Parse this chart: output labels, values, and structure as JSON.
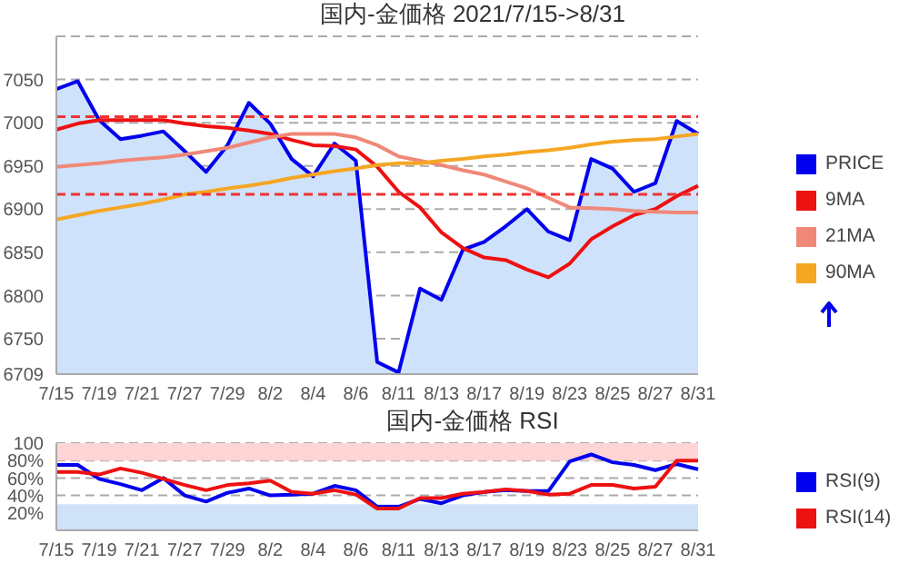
{
  "chart_data": [
    {
      "type": "line",
      "title": "国内-金価格 2021/7/15->8/31",
      "categories": [
        "7/15",
        null,
        "7/19",
        null,
        "7/21",
        null,
        "7/27",
        null,
        "7/29",
        null,
        "8/2",
        null,
        "8/4",
        null,
        "8/6",
        null,
        "8/11",
        null,
        "8/13",
        null,
        "8/17",
        null,
        "8/19",
        null,
        "8/23",
        null,
        "8/25",
        null,
        "8/27",
        null,
        "8/31"
      ],
      "series": [
        {
          "name": "PRICE",
          "type": "area",
          "color": "#0000ee",
          "values": [
            7039,
            7048,
            7003,
            6981,
            6985,
            6990,
            6967,
            6943,
            6974,
            7023,
            6999,
            6958,
            6938,
            6976,
            6956,
            6723,
            6711,
            6808,
            6795,
            6853,
            6862,
            6880,
            6900,
            6874,
            6864,
            6958,
            6947,
            6920,
            6930,
            7002,
            6987
          ]
        },
        {
          "name": "9MA",
          "color": "#ee1111",
          "values": [
            6992,
            6999,
            7003,
            7003,
            7003,
            7003,
            6999,
            6996,
            6994,
            6991,
            6987,
            6980,
            6974,
            6973,
            6969,
            6949,
            6920,
            6902,
            6873,
            6855,
            6844,
            6841,
            6830,
            6821,
            6837,
            6865,
            6880,
            6893,
            6900,
            6915,
            6927
          ]
        },
        {
          "name": "21MA",
          "color": "#f08878",
          "values": [
            6949,
            6951,
            6953,
            6956,
            6958,
            6960,
            6963,
            6967,
            6971,
            6977,
            6983,
            6987,
            6987,
            6987,
            6983,
            6974,
            6961,
            6956,
            6951,
            6945,
            6940,
            6932,
            6924,
            6913,
            6902,
            6901,
            6900,
            6898,
            6897,
            6896,
            6896
          ]
        },
        {
          "name": "90MA",
          "color": "#f5a623",
          "values": [
            6888,
            6893,
            6898,
            6902,
            6906,
            6911,
            6917,
            6920,
            6924,
            6927,
            6931,
            6936,
            6940,
            6944,
            6947,
            6951,
            6953,
            6953,
            6956,
            6958,
            6961,
            6963,
            6966,
            6968,
            6971,
            6975,
            6978,
            6980,
            6981,
            6984,
            6987
          ]
        }
      ],
      "ylim": [
        6709,
        7100
      ],
      "yticks": [
        6709,
        6750,
        6800,
        6850,
        6900,
        6950,
        7000,
        7050
      ],
      "ref_lines": [
        {
          "axis": "y",
          "value": 7007,
          "color": "#ee3333",
          "line_style": "dashed"
        },
        {
          "axis": "y",
          "value": 6917,
          "color": "#ee3333",
          "line_style": "dashed"
        }
      ],
      "grid": "y",
      "legend": "right",
      "marker": "none"
    },
    {
      "type": "line",
      "title": "国内-金価格 RSI",
      "categories": [
        "7/15",
        null,
        "7/19",
        null,
        "7/21",
        null,
        "7/27",
        null,
        "7/29",
        null,
        "8/2",
        null,
        "8/4",
        null,
        "8/6",
        null,
        "8/11",
        null,
        "8/13",
        null,
        "8/17",
        null,
        "8/19",
        null,
        "8/23",
        null,
        "8/25",
        null,
        "8/27",
        null,
        "8/31"
      ],
      "series": [
        {
          "name": "RSI(9)",
          "color": "#0000ee",
          "values": [
            75,
            75,
            59,
            53,
            46,
            60,
            40,
            33,
            43,
            48,
            40,
            41,
            42,
            51,
            46,
            27,
            27,
            36,
            31,
            40,
            44,
            46,
            45,
            45,
            79,
            87,
            78,
            75,
            69,
            76,
            70
          ]
        },
        {
          "name": "RSI(14)",
          "color": "#ee1111",
          "values": [
            67,
            67,
            64,
            71,
            66,
            59,
            52,
            46,
            52,
            54,
            57,
            44,
            42,
            46,
            41,
            25,
            25,
            37,
            37,
            42,
            44,
            47,
            45,
            41,
            42,
            52,
            52,
            48,
            50,
            80,
            80
          ]
        }
      ],
      "ylim": [
        0,
        100
      ],
      "yticks": [
        {
          "value": 20,
          "label": "20%"
        },
        {
          "value": 40,
          "label": "40%"
        },
        {
          "value": 60,
          "label": "60%"
        },
        {
          "value": 80,
          "label": "80%"
        },
        {
          "value": 100,
          "label": "100"
        }
      ],
      "bands": [
        {
          "axis": "y",
          "from": 80,
          "to": 100,
          "color": "#ffd4d4"
        },
        {
          "axis": "y",
          "from": 0,
          "to": 30,
          "color": "#cfe2f8"
        }
      ],
      "grid": "y",
      "legend": "right",
      "marker": "none"
    }
  ]
}
